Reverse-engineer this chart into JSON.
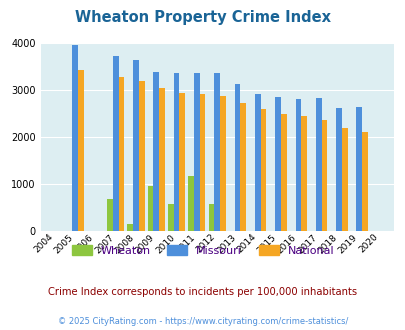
{
  "title": "Wheaton Property Crime Index",
  "years": [
    2004,
    2005,
    2006,
    2007,
    2008,
    2009,
    2010,
    2011,
    2012,
    2013,
    2014,
    2015,
    2016,
    2017,
    2018,
    2019,
    2020
  ],
  "wheaton": [
    0,
    0,
    0,
    670,
    150,
    960,
    575,
    1160,
    575,
    0,
    0,
    0,
    0,
    0,
    0,
    0,
    0
  ],
  "missouri": [
    0,
    3950,
    0,
    3720,
    3640,
    3380,
    3350,
    3350,
    3350,
    3130,
    2920,
    2850,
    2800,
    2830,
    2620,
    2630,
    0
  ],
  "national": [
    0,
    3420,
    0,
    3270,
    3200,
    3040,
    2940,
    2920,
    2870,
    2730,
    2590,
    2490,
    2450,
    2370,
    2180,
    2100,
    0
  ],
  "wheaton_color": "#8dc63f",
  "missouri_color": "#4d8fdb",
  "national_color": "#f5a623",
  "bg_color": "#ddeef2",
  "ylim": [
    0,
    4000
  ],
  "yticks": [
    0,
    1000,
    2000,
    3000,
    4000
  ],
  "subtitle": "Crime Index corresponds to incidents per 100,000 inhabitants",
  "footer": "© 2025 CityRating.com - https://www.cityrating.com/crime-statistics/",
  "legend_labels": [
    "Wheaton",
    "Missouri",
    "National"
  ],
  "title_color": "#1a6496",
  "subtitle_color": "#8b0000",
  "footer_color": "#4d8fdb",
  "legend_text_color": "#4b0082"
}
